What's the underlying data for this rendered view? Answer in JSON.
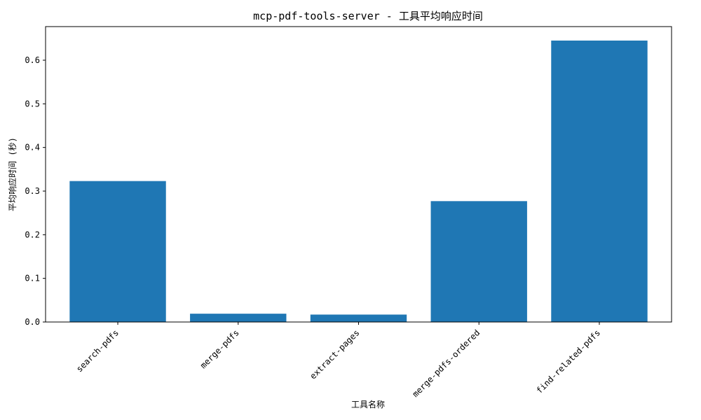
{
  "chart_data": {
    "type": "bar",
    "title": "mcp-pdf-tools-server - 工具平均响应时间",
    "xlabel": "工具名称",
    "ylabel": "平均响应时间 (秒)",
    "categories": [
      "search-pdfs",
      "merge-pdfs",
      "extract-pages",
      "merge-pdfs-ordered",
      "find-related-pdfs"
    ],
    "values": [
      0.323,
      0.019,
      0.017,
      0.277,
      0.645
    ],
    "ylim": [
      0,
      0.677
    ],
    "yticks": [
      0.0,
      0.1,
      0.2,
      0.3,
      0.4,
      0.5,
      0.6
    ],
    "ytick_labels": [
      "0.0",
      "0.1",
      "0.2",
      "0.3",
      "0.4",
      "0.5",
      "0.6"
    ],
    "bar_color": "#1f77b4",
    "grid": false,
    "legend": "none"
  }
}
